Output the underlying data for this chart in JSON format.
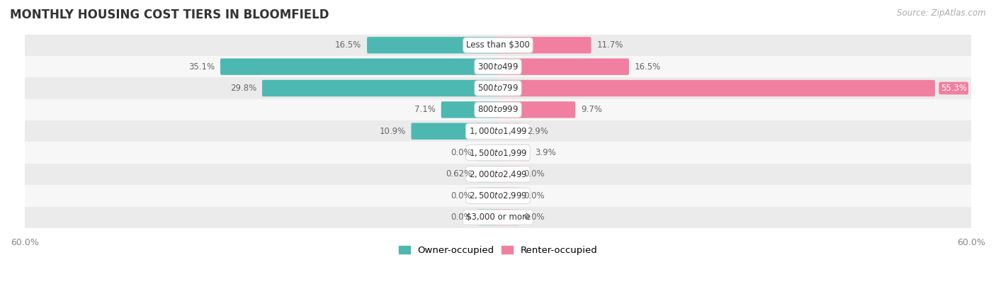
{
  "title": "MONTHLY HOUSING COST TIERS IN BLOOMFIELD",
  "source": "Source: ZipAtlas.com",
  "categories": [
    "Less than $300",
    "$300 to $499",
    "$500 to $799",
    "$800 to $999",
    "$1,000 to $1,499",
    "$1,500 to $1,999",
    "$2,000 to $2,499",
    "$2,500 to $2,999",
    "$3,000 or more"
  ],
  "owner_values": [
    16.5,
    35.1,
    29.8,
    7.1,
    10.9,
    0.0,
    0.62,
    0.0,
    0.0
  ],
  "renter_values": [
    11.7,
    16.5,
    55.3,
    9.7,
    2.9,
    3.9,
    0.0,
    0.0,
    0.0
  ],
  "owner_color": "#4db8b2",
  "renter_color": "#f07fa0",
  "owner_stub_color": "#7ececa",
  "renter_stub_color": "#f5a8be",
  "row_bg_even": "#ebebeb",
  "row_bg_odd": "#f7f7f7",
  "axis_limit": 60.0,
  "legend_owner": "Owner-occupied",
  "legend_renter": "Renter-occupied",
  "title_fontsize": 12,
  "source_fontsize": 8.5,
  "bar_height": 0.55,
  "stub_min": 2.5,
  "label_color": "#666666",
  "tick_label_color": "#888888"
}
